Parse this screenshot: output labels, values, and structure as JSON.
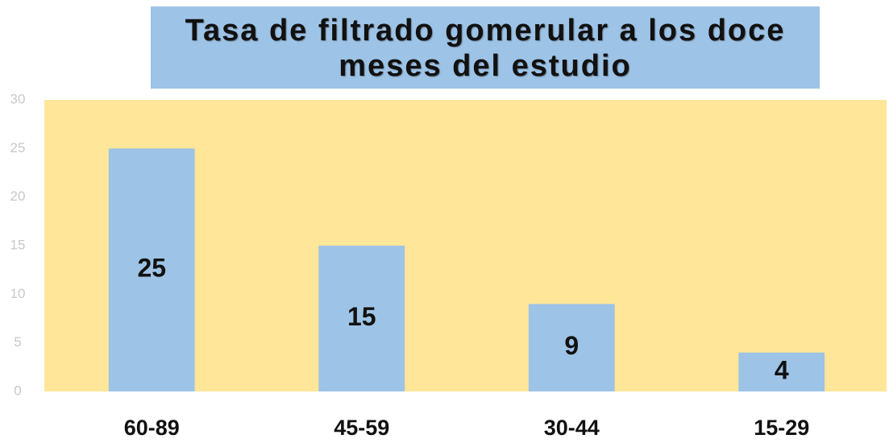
{
  "chart_data": {
    "type": "bar",
    "title": "Tasa de filtrado gomerular a los doce meses del estudio",
    "categories": [
      "60-89",
      "45-59",
      "30-44",
      "15-29"
    ],
    "values": [
      25,
      15,
      9,
      4
    ],
    "color": "#9dc3e6",
    "background": "#ffe699",
    "ylim": [
      0,
      30
    ],
    "yticks": [
      0,
      5,
      10,
      15,
      20,
      25,
      30
    ],
    "grid": false
  }
}
